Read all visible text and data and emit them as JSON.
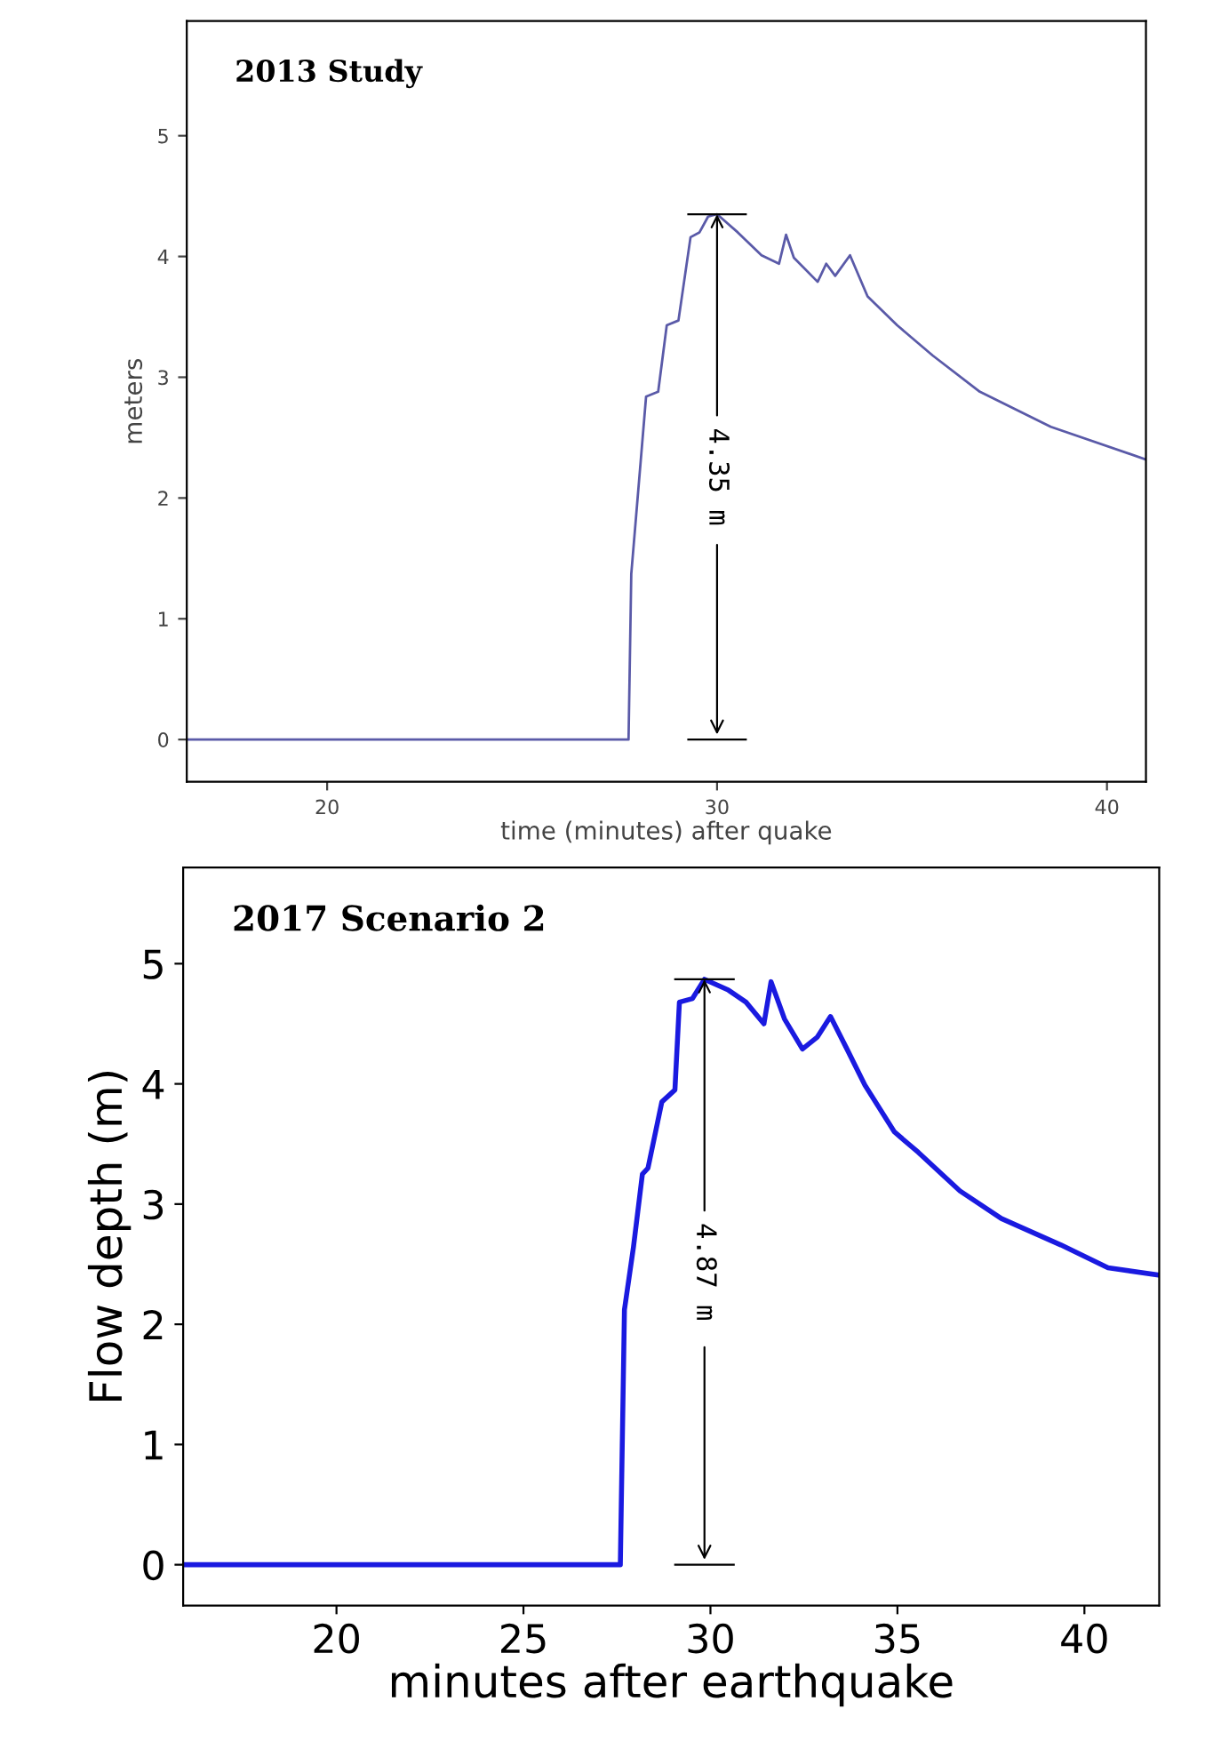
{
  "chart_data": [
    {
      "type": "line",
      "title": "2013 Study",
      "xlabel": "time (minutes) after quake",
      "ylabel": "meters",
      "xlim": [
        16.4,
        41
      ],
      "ylim": [
        -0.35,
        5.95
      ],
      "xticks": [
        20,
        30,
        40
      ],
      "yticks": [
        0,
        1,
        2,
        3,
        4,
        5
      ],
      "grid": false,
      "legend": false,
      "marker": "none",
      "line_style": "solid",
      "series": [
        {
          "color": "#5a5aa8",
          "x": [
            16.4,
            27.73,
            27.8,
            28.18,
            28.49,
            28.71,
            29.01,
            29.32,
            29.55,
            29.77,
            30.0,
            30.53,
            31.14,
            31.59,
            31.77,
            31.97,
            32.58,
            32.8,
            33.03,
            33.41,
            33.86,
            34.62,
            35.53,
            36.74,
            38.56,
            40.99
          ],
          "values": [
            0,
            0,
            1.37,
            2.84,
            2.88,
            3.43,
            3.47,
            4.16,
            4.2,
            4.33,
            4.35,
            4.2,
            4.01,
            3.94,
            4.18,
            3.99,
            3.79,
            3.94,
            3.84,
            4.01,
            3.67,
            3.43,
            3.18,
            2.88,
            2.59,
            2.32
          ]
        }
      ],
      "annotations": [
        {
          "text": "4.35 m",
          "x": 30,
          "y": 4.35
        }
      ]
    },
    {
      "type": "line",
      "title": "2017 Scenario 2",
      "xlabel": "minutes after earthquake",
      "ylabel": "Flow depth (m)",
      "xlim": [
        15.9,
        42
      ],
      "ylim": [
        -0.34,
        5.8
      ],
      "xticks": [
        20,
        25,
        30,
        35,
        40
      ],
      "yticks": [
        0,
        1,
        2,
        3,
        4,
        5
      ],
      "grid": false,
      "legend": false,
      "marker": "none",
      "line_style": "solid",
      "series": [
        {
          "color": "#1a1ae0",
          "x": [
            15.9,
            27.59,
            27.7,
            27.94,
            28.18,
            28.33,
            28.7,
            29.05,
            29.17,
            29.52,
            29.84,
            30.48,
            30.95,
            31.43,
            31.62,
            31.98,
            32.46,
            32.86,
            33.21,
            33.65,
            34.13,
            34.92,
            35.56,
            36.67,
            37.78,
            39.37,
            40.63,
            41.98
          ],
          "values": [
            0,
            0,
            2.12,
            2.64,
            3.25,
            3.3,
            3.85,
            3.95,
            4.68,
            4.71,
            4.87,
            4.78,
            4.68,
            4.5,
            4.85,
            4.54,
            4.29,
            4.39,
            4.56,
            4.29,
            3.99,
            3.6,
            3.43,
            3.11,
            2.88,
            2.66,
            2.47,
            2.41
          ]
        }
      ],
      "annotations": [
        {
          "text": "4.87 m",
          "x": 29.84,
          "y": 4.87
        }
      ]
    }
  ]
}
